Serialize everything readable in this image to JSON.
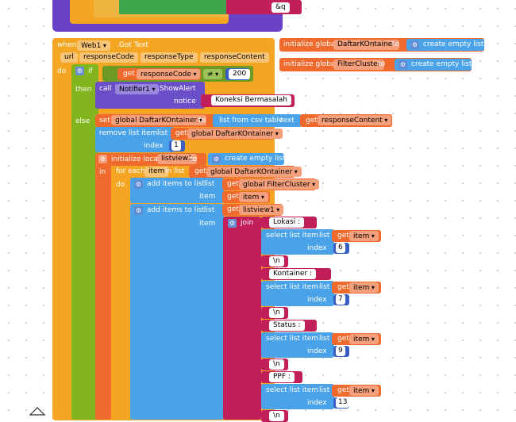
{
  "colors": {
    "event": "#f4a623",
    "control": "#82b41e",
    "controlDark": "#6b9a14",
    "proc": "#6a4fc9",
    "text": "#c21e5a",
    "list": "#4aa3e8",
    "var": "#f06a2d",
    "math": "#3a5fc4",
    "logic": "#6c9a22",
    "top": "#6a42c8"
  },
  "top": {
    "amp": "&q"
  },
  "event": {
    "when": "when",
    "component": "Web1",
    "event_name": ".Got Text",
    "params": [
      "url",
      "responseCode",
      "responseType",
      "responseContent"
    ],
    "do": "do"
  },
  "globals": [
    {
      "label": "initialize global",
      "name": "DaftarKOntainer",
      "to": "to",
      "value": "create empty list"
    },
    {
      "label": "initialize global",
      "name": "FilterCluster",
      "to": "to",
      "value": "create empty list"
    }
  ],
  "ifblock": {
    "if": "if",
    "then": "then",
    "else": "else",
    "get": "get",
    "var": "responseCode",
    "op": "≠",
    "num": "200"
  },
  "notifier": {
    "call": "call",
    "component": "Notifier1",
    "method": ".ShowAlert",
    "notice": "notice",
    "text": "Koneksi Bermasalah"
  },
  "setblock": {
    "set": "set",
    "var": "global DaftarKOntainer",
    "to": "to",
    "func": "list from csv table",
    "param": "text",
    "get": "get",
    "getvar": "responseContent"
  },
  "remove": {
    "label": "remove list item",
    "list": "list",
    "get": "get",
    "var": "global DaftarKOntainer",
    "index": "index",
    "num": "1"
  },
  "local": {
    "label": "initialize local",
    "name": "listview1",
    "to": "to",
    "in": "in",
    "value": "create empty list"
  },
  "foreach": {
    "label": "for each",
    "var": "item",
    "inlist": "in list",
    "get": "get",
    "listvar": "global DaftarKOntainer",
    "do": "do"
  },
  "add1": {
    "label": "add items to list",
    "list": "list",
    "get": "get",
    "listvar": "global FilterCluster",
    "item": "item",
    "itemvar": "item"
  },
  "add2": {
    "label": "add items to list",
    "list": "list",
    "get": "get",
    "listvar": "listview1",
    "item": "item"
  },
  "join": {
    "label": "join"
  },
  "joinItems": [
    {
      "text": "Lokasi :"
    },
    {
      "select": "select list item",
      "list": "list",
      "get": "get",
      "var": "item",
      "index": "index",
      "num": "6"
    },
    {
      "text": "\\n"
    },
    {
      "text": "Kontainer :"
    },
    {
      "select": "select list item",
      "list": "list",
      "get": "get",
      "var": "item",
      "index": "index",
      "num": "7"
    },
    {
      "text": "\\n"
    },
    {
      "text": "Status :"
    },
    {
      "select": "select list item",
      "list": "list",
      "get": "get",
      "var": "item",
      "index": "index",
      "num": "9"
    },
    {
      "text": "\\n"
    },
    {
      "text": "PPF :"
    },
    {
      "select": "select list item",
      "list": "list",
      "get": "get",
      "var": "item",
      "index": "index",
      "num": "13"
    },
    {
      "text": "\\n"
    }
  ]
}
